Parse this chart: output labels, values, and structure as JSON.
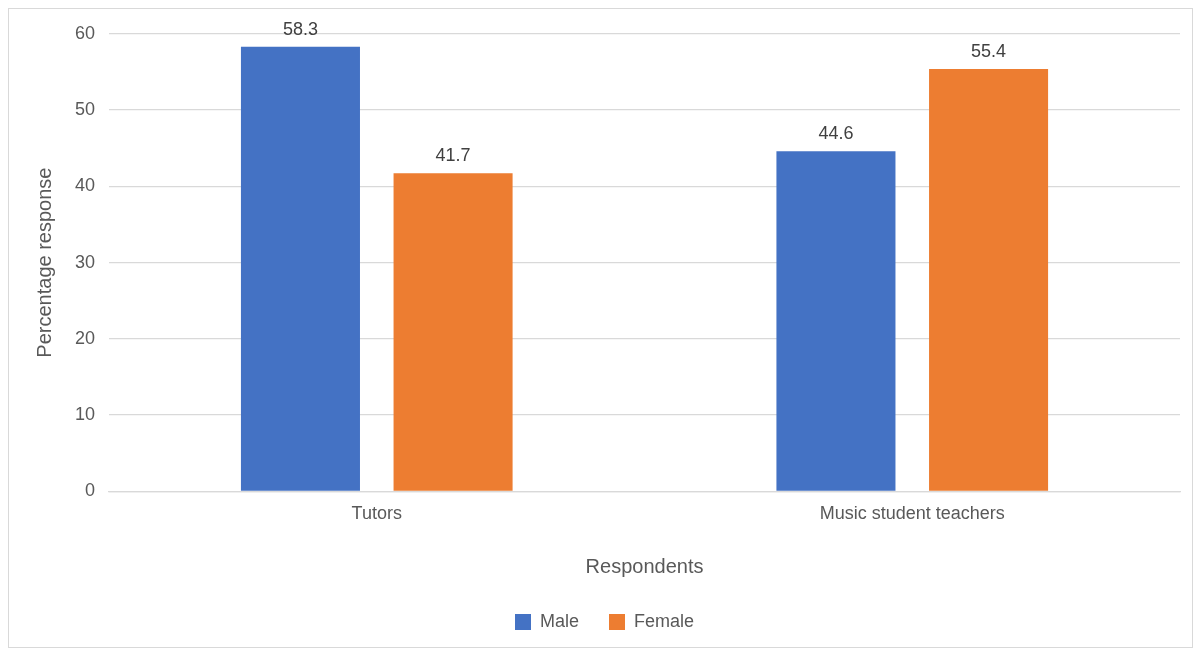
{
  "chart_data": {
    "type": "bar",
    "xlabel": "Respondents",
    "ylabel": "Percentage response",
    "categories": [
      "Tutors",
      "Music student teachers"
    ],
    "series": [
      {
        "name": "Male",
        "color": "#4472c4",
        "values": [
          58.3,
          44.6
        ]
      },
      {
        "name": "Female",
        "color": "#ed7d31",
        "values": [
          41.7,
          55.4
        ]
      }
    ],
    "ylim": [
      0,
      60
    ],
    "yticks": [
      0,
      10,
      20,
      30,
      40,
      50,
      60
    ],
    "grid": "y",
    "legend": "bottom",
    "data_labels": true
  }
}
